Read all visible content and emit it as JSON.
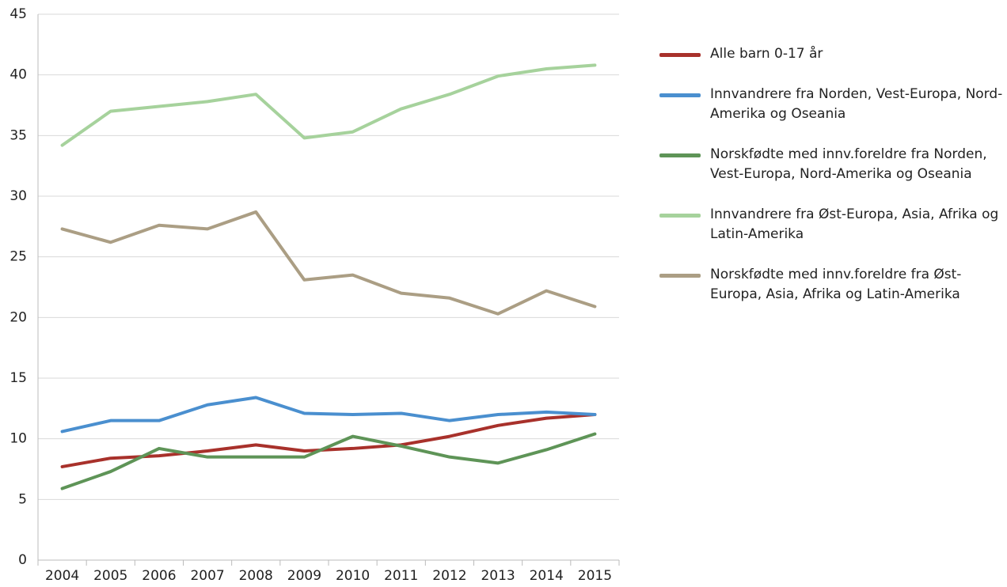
{
  "chart_data": {
    "type": "line",
    "categories": [
      "2004",
      "2005",
      "2006",
      "2007",
      "2008",
      "2009",
      "2010",
      "2011",
      "2012",
      "2013",
      "2014",
      "2015"
    ],
    "series": [
      {
        "name": "Alle barn 0-17 år",
        "color": "#a8312b",
        "values": [
          7.7,
          8.4,
          8.6,
          9.0,
          9.5,
          9.0,
          9.2,
          9.5,
          10.2,
          11.1,
          11.7,
          12.0
        ]
      },
      {
        "name": "Innvandrere fra Norden, Vest-Europa, Nord-Amerika og Oseania",
        "color": "#4a8fcf",
        "values": [
          10.6,
          11.5,
          11.5,
          12.8,
          13.4,
          12.1,
          12.0,
          12.1,
          11.5,
          12.0,
          12.2,
          12.0
        ]
      },
      {
        "name": "Norskfødte med innv.foreldre fra Norden, Vest-Europa, Nord-Amerika og Oseania",
        "color": "#5e9457",
        "values": [
          5.9,
          7.3,
          9.2,
          8.5,
          8.5,
          8.5,
          10.2,
          9.4,
          8.5,
          8.0,
          9.1,
          10.4
        ]
      },
      {
        "name": "Innvandrere fra Øst-Europa, Asia, Afrika og Latin-Amerika",
        "color": "#a6d29c",
        "values": [
          34.2,
          37.0,
          37.4,
          37.8,
          38.4,
          34.8,
          35.3,
          37.2,
          38.4,
          39.9,
          40.5,
          40.8
        ]
      },
      {
        "name": "Norskfødte med innv.foreldre fra Øst-Europa, Asia, Afrika og Latin-Amerika",
        "color": "#ab9e84",
        "values": [
          27.3,
          26.2,
          27.6,
          27.3,
          28.7,
          23.1,
          23.5,
          22.0,
          21.6,
          20.3,
          22.2,
          20.9
        ]
      }
    ],
    "ylim": [
      0,
      45
    ],
    "yticks": [
      0,
      5,
      10,
      15,
      20,
      25,
      30,
      35,
      40,
      45
    ],
    "grid": true
  }
}
